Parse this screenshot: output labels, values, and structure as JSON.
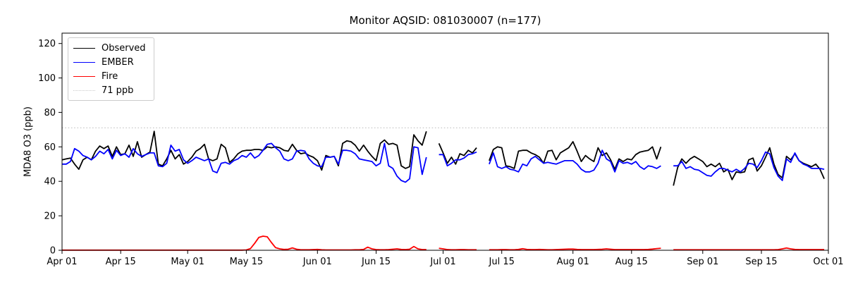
{
  "figure": {
    "title": "Monitor AQSID: 081030007 (n=177)"
  },
  "chart_data": {
    "type": "line",
    "title": "Monitor AQSID: 081030007 (n=177)",
    "xlabel": "",
    "ylabel": "MDA8 O3 (ppb)",
    "ylim": [
      0,
      126
    ],
    "yticks": [
      0,
      20,
      40,
      60,
      80,
      100,
      120
    ],
    "xlim_days": [
      0,
      183
    ],
    "x_description": "daily MDA8 ozone, index 0 = Apr 01, index 182 = Sep 30, null = missing day",
    "n_points": 177,
    "grid": false,
    "xticks": [
      {
        "day": 0,
        "label": "Apr 01"
      },
      {
        "day": 14,
        "label": "Apr 15"
      },
      {
        "day": 30,
        "label": "May 01"
      },
      {
        "day": 44,
        "label": "May 15"
      },
      {
        "day": 61,
        "label": "Jun 01"
      },
      {
        "day": 75,
        "label": "Jun 15"
      },
      {
        "day": 91,
        "label": "Jul 01"
      },
      {
        "day": 105,
        "label": "Jul 15"
      },
      {
        "day": 122,
        "label": "Aug 01"
      },
      {
        "day": 136,
        "label": "Aug 15"
      },
      {
        "day": 153,
        "label": "Sep 01"
      },
      {
        "day": 167,
        "label": "Sep 15"
      },
      {
        "day": 183,
        "label": "Oct 01"
      }
    ],
    "threshold": {
      "value": 71,
      "label": "71 ppb",
      "color": "#c9c9c9",
      "style": "dotted"
    },
    "legend": {
      "position": "upper left",
      "items": [
        {
          "label": "Observed",
          "color": "#000000",
          "line": "solid"
        },
        {
          "label": "EMBER",
          "color": "#0000ff",
          "line": "solid"
        },
        {
          "label": "Fire",
          "color": "#ff0000",
          "line": "solid"
        },
        {
          "label": "71 ppb",
          "color": "#c9c9c9",
          "line": "dotted"
        }
      ]
    },
    "series": [
      {
        "name": "Observed",
        "color": "#000000",
        "values": [
          52.5,
          53,
          53.5,
          50,
          47,
          52.5,
          54,
          52.5,
          57.5,
          60.5,
          59,
          60.5,
          54.5,
          60,
          55.5,
          56,
          61,
          54.5,
          63,
          54,
          55.5,
          57,
          69,
          50,
          49,
          53,
          58,
          53,
          55.5,
          50,
          51.5,
          54,
          57.5,
          59,
          61.5,
          53,
          52,
          53,
          61.5,
          59.5,
          51,
          53,
          56,
          57.5,
          58,
          58,
          58.5,
          58.5,
          58,
          60,
          59.5,
          60,
          59.5,
          58,
          57.5,
          61.5,
          58,
          56,
          56.5,
          55,
          54,
          52,
          46.5,
          55,
          54,
          54.5,
          49,
          62,
          63.5,
          63,
          61,
          57.5,
          61,
          57.5,
          54.5,
          52,
          62,
          64,
          61.5,
          62,
          61,
          49,
          47.5,
          48.5,
          67,
          63.5,
          61,
          69,
          null,
          null,
          62,
          56.5,
          50.5,
          54,
          50,
          56,
          55,
          58,
          56.5,
          59.5,
          null,
          null,
          52,
          58.5,
          60,
          59.5,
          49,
          48.5,
          47.5,
          57.5,
          58,
          58,
          56.5,
          55.5,
          54,
          50.5,
          57.5,
          58,
          52.5,
          56.5,
          58,
          59.5,
          63,
          57.5,
          51.5,
          55,
          53,
          51.5,
          59.5,
          55,
          56.5,
          52.5,
          47,
          53,
          51.5,
          53,
          52.5,
          55.5,
          57,
          57.5,
          58,
          60,
          53,
          60,
          null,
          null,
          37.5,
          48,
          53,
          50.5,
          53,
          54.5,
          53,
          51.5,
          48.5,
          50,
          48.5,
          50.5,
          45.5,
          47,
          41,
          45.5,
          45,
          45.5,
          52.5,
          53.5,
          46,
          49,
          54,
          59.5,
          50,
          44,
          42,
          54.5,
          52.5,
          56,
          52,
          50.5,
          49.5,
          48.5,
          50,
          47,
          41.5
        ]
      },
      {
        "name": "EMBER",
        "color": "#0000ff",
        "values": [
          50,
          50,
          51.5,
          59,
          57.5,
          55,
          54,
          52.5,
          54.5,
          57.5,
          56,
          58.5,
          53,
          58,
          55,
          56,
          54,
          59,
          56,
          54.5,
          55.5,
          56.5,
          56.5,
          49,
          48.5,
          50.5,
          61,
          57.5,
          58.5,
          52.5,
          50.5,
          52,
          54,
          53,
          52,
          53,
          46,
          45,
          50.5,
          51,
          50,
          52,
          53,
          55,
          54,
          56.5,
          53.5,
          55,
          58,
          61.5,
          62,
          59.5,
          57.5,
          53,
          52,
          53,
          57.5,
          58,
          57.5,
          53,
          50.5,
          49,
          48.5,
          54,
          54,
          54.5,
          50,
          58,
          58,
          57.5,
          56,
          53,
          52.5,
          52,
          51.5,
          49,
          50.5,
          62,
          49,
          47.5,
          43,
          40.5,
          39.5,
          41.5,
          60,
          59.5,
          44,
          54,
          null,
          null,
          55.5,
          55.5,
          49,
          50.5,
          52.5,
          52.5,
          53.5,
          55.5,
          56,
          57,
          null,
          null,
          50,
          56.5,
          48.5,
          47.5,
          48.5,
          47,
          46.5,
          45.5,
          50,
          49,
          53,
          54.5,
          52.5,
          50.5,
          51,
          50.5,
          50,
          51,
          52,
          52,
          52,
          50,
          47,
          45.5,
          45.5,
          46.5,
          50.5,
          58,
          53,
          51.5,
          45.5,
          52,
          50.5,
          51,
          50,
          51.5,
          48.5,
          47,
          49,
          48.5,
          47.5,
          49,
          null,
          null,
          49,
          49,
          51.5,
          47.5,
          48.5,
          47,
          46.5,
          45,
          43.5,
          43,
          45.5,
          47.5,
          47.5,
          46.5,
          45.5,
          47,
          45.5,
          47.5,
          50.5,
          50,
          48,
          52,
          57,
          56,
          48,
          43,
          40.5,
          53,
          51,
          56.5,
          52,
          50,
          49,
          47.5,
          47.5,
          47.5,
          47
        ]
      },
      {
        "name": "Fire",
        "color": "#ff0000",
        "values": [
          0.1,
          0.1,
          0.1,
          0.1,
          0.1,
          0.1,
          0.1,
          0.1,
          0.1,
          0.1,
          0.1,
          0.1,
          0.1,
          0.1,
          0.1,
          0.1,
          0.1,
          0.1,
          0.1,
          0.1,
          0.1,
          0.1,
          0.1,
          0.1,
          0.1,
          0.1,
          0.1,
          0.1,
          0.1,
          0.1,
          0.1,
          0.1,
          0.1,
          0.1,
          0.1,
          0.1,
          0.1,
          0.1,
          0.1,
          0.1,
          0.1,
          0.1,
          0.1,
          0.1,
          0.2,
          1,
          4,
          7.5,
          8.2,
          7.8,
          4.5,
          1.5,
          0.8,
          0.5,
          0.6,
          1.4,
          0.6,
          0.3,
          0.3,
          0.3,
          0.4,
          0.5,
          0.3,
          0.2,
          0.2,
          0.2,
          0.2,
          0.2,
          0.2,
          0.2,
          0.3,
          0.3,
          0.5,
          1.8,
          0.8,
          0.4,
          0.3,
          0.3,
          0.4,
          0.6,
          0.8,
          0.5,
          0.4,
          0.6,
          2.2,
          0.8,
          0.4,
          0.4,
          null,
          null,
          1.2,
          0.8,
          0.4,
          0.3,
          0.3,
          0.4,
          0.4,
          0.3,
          0.3,
          0.3,
          null,
          null,
          0.3,
          0.3,
          0.3,
          0.4,
          0.4,
          0.3,
          0.3,
          0.5,
          0.9,
          0.5,
          0.4,
          0.4,
          0.5,
          0.4,
          0.3,
          0.3,
          0.4,
          0.5,
          0.6,
          0.7,
          0.7,
          0.5,
          0.4,
          0.4,
          0.4,
          0.4,
          0.5,
          0.6,
          0.8,
          0.6,
          0.4,
          0.4,
          0.4,
          0.4,
          0.4,
          0.4,
          0.4,
          0.4,
          0.5,
          0.7,
          1,
          1.2,
          null,
          null,
          0.3,
          0.3,
          0.3,
          0.3,
          0.3,
          0.3,
          0.3,
          0.3,
          0.3,
          0.3,
          0.3,
          0.3,
          0.3,
          0.3,
          0.3,
          0.3,
          0.3,
          0.3,
          0.3,
          0.3,
          0.3,
          0.3,
          0.3,
          0.3,
          0.3,
          0.4,
          0.8,
          1.3,
          0.8,
          0.5,
          0.4,
          0.4,
          0.4,
          0.4,
          0.4,
          0.4,
          0.4
        ]
      }
    ]
  },
  "colors": {
    "background": "#ffffff",
    "axes": "#000000"
  }
}
